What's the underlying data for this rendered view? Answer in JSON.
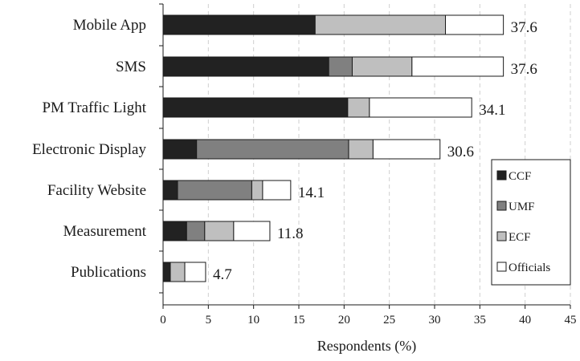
{
  "chart_data": {
    "type": "bar",
    "orientation": "horizontal",
    "stacked": true,
    "categories": [
      "Mobile App",
      "SMS",
      "PM Traffic Light",
      "Electronic Display",
      "Facility Website",
      "Measurement",
      "Publications"
    ],
    "series": [
      {
        "name": "CCF",
        "color": "#222222",
        "values": [
          16.8,
          18.3,
          20.4,
          3.7,
          1.6,
          2.6,
          0.8
        ]
      },
      {
        "name": "UMF",
        "color": "#808080",
        "values": [
          0.0,
          2.6,
          0.0,
          16.8,
          8.2,
          2.0,
          0.0
        ]
      },
      {
        "name": "ECF",
        "color": "#bfbfbf",
        "values": [
          14.4,
          6.6,
          2.4,
          2.7,
          1.2,
          3.2,
          1.6
        ]
      },
      {
        "name": "Officials",
        "color": "#ffffff",
        "values": [
          6.4,
          10.1,
          11.3,
          7.4,
          3.1,
          4.0,
          2.3
        ]
      }
    ],
    "totals": [
      "37.6",
      "37.6",
      "34.1",
      "30.6",
      "14.1",
      "11.8",
      "4.7"
    ],
    "xlabel": "Respondents (%)",
    "ylabel": "",
    "title": "",
    "xlim": [
      0,
      45
    ],
    "xticks": [
      "0",
      "5",
      "10",
      "15",
      "20",
      "25",
      "30",
      "35",
      "40",
      "45"
    ],
    "grid": "vertical dashed",
    "legend_position": "bottom-right"
  }
}
